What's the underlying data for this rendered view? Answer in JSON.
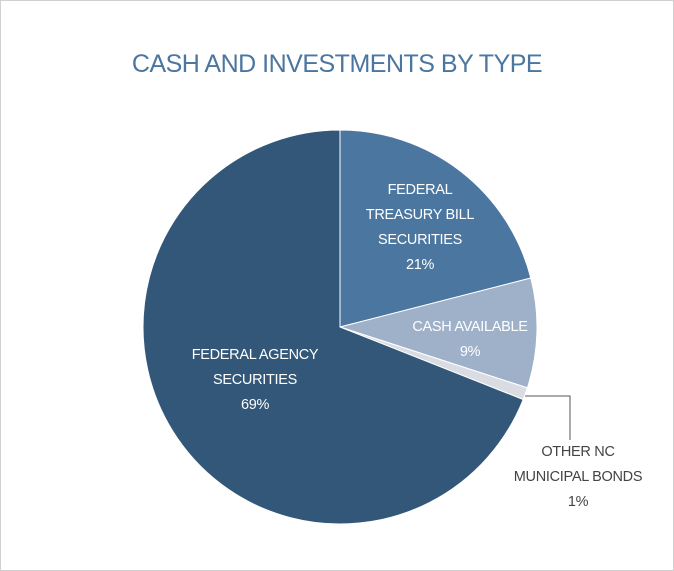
{
  "chart_data": {
    "type": "pie",
    "title": "CASH AND INVESTMENTS BY TYPE",
    "categories": [
      "FEDERAL TREASURY BILL SECURITIES",
      "CASH AVAILABLE",
      "OTHER NC MUNICIPAL BONDS",
      "FEDERAL AGENCY SECURITIES"
    ],
    "values": [
      21,
      9,
      1,
      69
    ],
    "value_labels": [
      "21%",
      "9%",
      "1%",
      "69%"
    ],
    "colors": [
      "#4a76a0",
      "#9fb0c9",
      "#d9dde3",
      "#335778"
    ]
  }
}
